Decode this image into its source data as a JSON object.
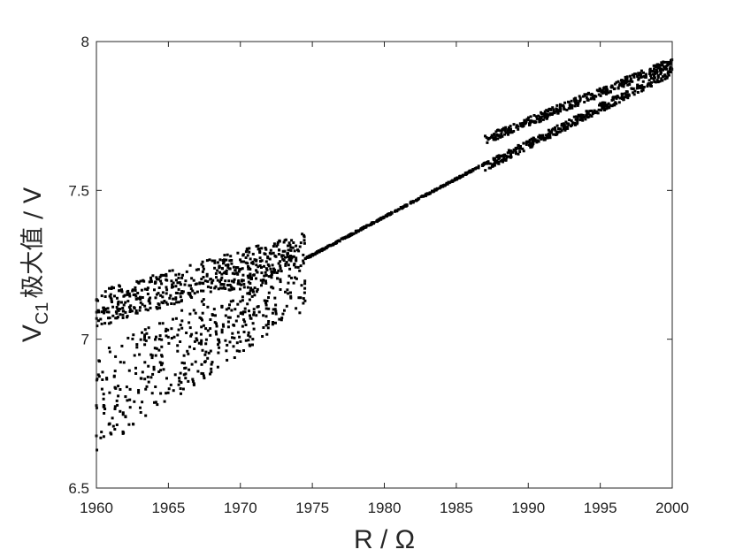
{
  "chart_data": {
    "type": "scatter",
    "title": "",
    "xlabel": "R / Ω",
    "ylabel": {
      "main": "V",
      "subscript": "C1",
      "suffix": "极大值 / V"
    },
    "xlim": [
      1960,
      2000
    ],
    "ylim": [
      6.5,
      8
    ],
    "xticks": [
      "1960",
      "1965",
      "1970",
      "1975",
      "1980",
      "1985",
      "1990",
      "1995",
      "2000"
    ],
    "yticks": [
      "6.5",
      "7",
      "7.5",
      "8"
    ],
    "grid": false,
    "legend": "none",
    "marker_color": "#000000",
    "regions": [
      {
        "name": "chaotic-upper-band",
        "x_range": [
          1960,
          1974.5
        ],
        "y_start": [
          7.04,
          7.16
        ],
        "y_end": [
          7.25,
          7.36
        ]
      },
      {
        "name": "chaotic-lower-band",
        "x_range": [
          1960,
          1974.5
        ],
        "y_start": [
          6.62,
          6.95
        ],
        "y_end": [
          7.1,
          7.32
        ]
      },
      {
        "name": "period-one-line",
        "x_range": [
          1974.5,
          1987
        ],
        "y_start": 7.27,
        "y_end": 7.59
      },
      {
        "name": "period-doubling-upper",
        "x_range": [
          1987,
          2000
        ],
        "y_start": 7.67,
        "y_end": 7.93
      },
      {
        "name": "period-doubling-lower",
        "x_range": [
          1987,
          2000
        ],
        "y_start": 7.58,
        "y_end": 7.9
      }
    ]
  }
}
